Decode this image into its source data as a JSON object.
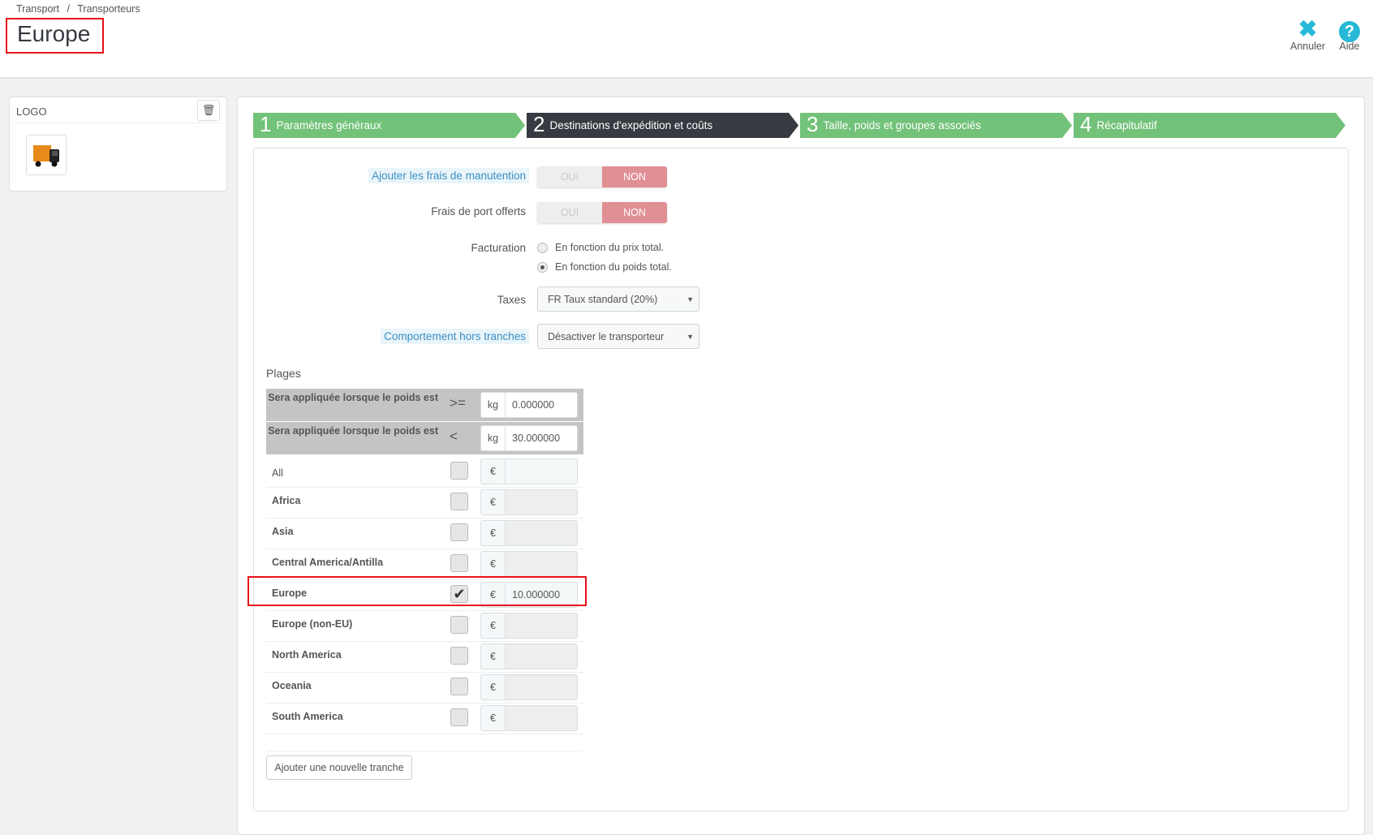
{
  "breadcrumb": [
    "Transport",
    "/",
    "Transporteurs"
  ],
  "title": "Europe",
  "toolbar": {
    "cancel": "Annuler",
    "help": "Aide",
    "cancel_icon": "close-icon",
    "help_icon": "question-circle-icon"
  },
  "logo_panel": {
    "heading": "LOGO",
    "trash_icon": "trash-icon"
  },
  "steps": [
    {
      "num": "1",
      "label": "Paramètres généraux",
      "active": false
    },
    {
      "num": "2",
      "label": "Destinations d'expédition et coûts",
      "active": true
    },
    {
      "num": "3",
      "label": "Taille, poids et groupes associés",
      "active": false
    },
    {
      "num": "4",
      "label": "Récapitulatif",
      "active": false
    }
  ],
  "form": {
    "handling": {
      "label": "Ajouter les frais de manutention",
      "yes": "OUI",
      "no": "NON",
      "value": "NON"
    },
    "free_shipping": {
      "label": "Frais de port offerts",
      "yes": "OUI",
      "no": "NON",
      "value": "NON"
    },
    "billing": {
      "label": "Facturation",
      "options": [
        "En fonction du prix total.",
        "En fonction du poids total."
      ],
      "selected": 1
    },
    "taxes": {
      "label": "Taxes",
      "value": "FR Taux standard (20%)"
    },
    "out_of_range": {
      "label": "Comportement hors tranches",
      "value": "Désactiver le transporteur"
    }
  },
  "ranges": {
    "title": "Plages",
    "rows": [
      {
        "label": "Sera appliquée lorsque le poids est",
        "op": ">=",
        "unit": "kg",
        "value": "0.000000"
      },
      {
        "label": "Sera appliquée lorsque le poids est",
        "op": "<",
        "unit": "kg",
        "value": "30.000000"
      }
    ],
    "currency": "€",
    "zones": [
      {
        "name": "All",
        "checked": false,
        "value": ""
      },
      {
        "name": "Africa",
        "checked": false,
        "value": ""
      },
      {
        "name": "Asia",
        "checked": false,
        "value": ""
      },
      {
        "name": "Central America/Antilla",
        "checked": false,
        "value": ""
      },
      {
        "name": "Europe",
        "checked": true,
        "value": "10.000000"
      },
      {
        "name": "Europe (non-EU)",
        "checked": false,
        "value": ""
      },
      {
        "name": "North America",
        "checked": false,
        "value": ""
      },
      {
        "name": "Oceania",
        "checked": false,
        "value": ""
      },
      {
        "name": "South America",
        "checked": false,
        "value": ""
      }
    ],
    "add_button": "Ajouter une nouvelle tranche"
  },
  "colors": {
    "step": "#72c279",
    "step_active": "#363a41",
    "accent": "#25b9d7",
    "toggle_no": "#e08f95",
    "highlight": "#e8101a"
  }
}
